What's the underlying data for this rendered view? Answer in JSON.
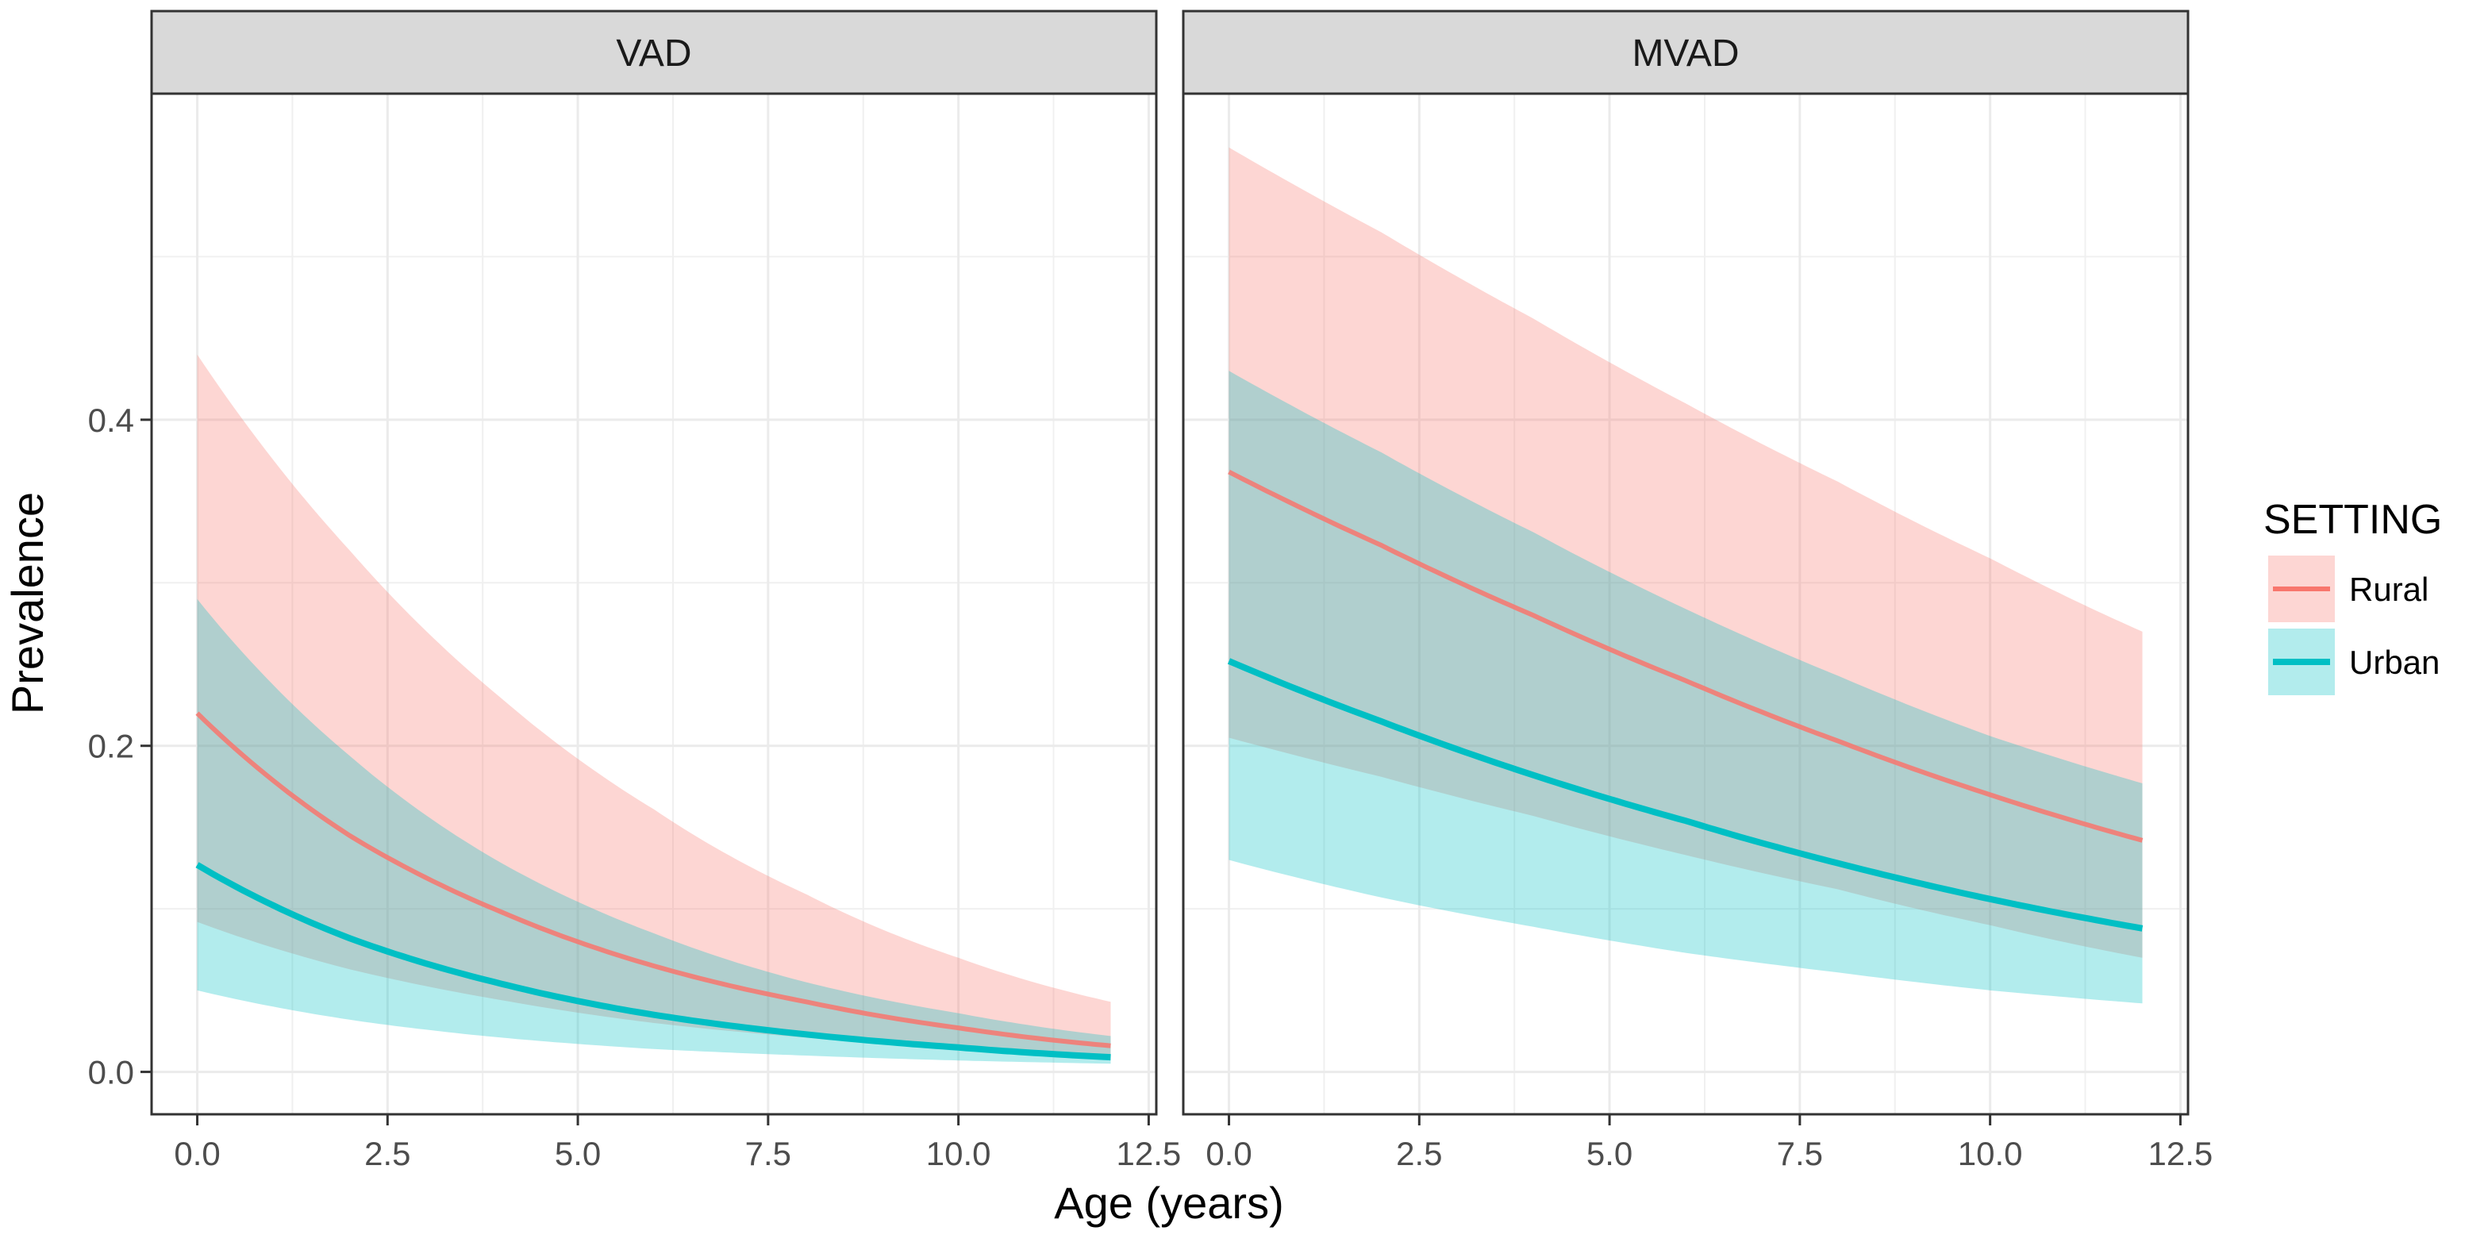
{
  "chart_data": {
    "type": "area",
    "xlabel": "Age (years)",
    "ylabel": "Prevalence",
    "xlim": [
      -0.6,
      12.6
    ],
    "ylim": [
      -0.026,
      0.6
    ],
    "x_ticks": [
      0,
      2.5,
      5,
      7.5,
      10,
      12.5
    ],
    "x_tick_labels": [
      "0.0",
      "2.5",
      "5.0",
      "7.5",
      "10.0",
      "12.5"
    ],
    "y_ticks": [
      0,
      0.2,
      0.4
    ],
    "y_tick_labels": [
      "0.0",
      "0.2",
      "0.4"
    ],
    "grid": true,
    "legend": {
      "title": "SETTING",
      "position": "right",
      "entries": [
        {
          "label": "Rural",
          "line_color": "#F8766D",
          "fill_color": "#F8766D"
        },
        {
          "label": "Urban",
          "line_color": "#00BFC4",
          "fill_color": "#00BFC4"
        }
      ]
    },
    "panels": [
      {
        "title": "VAD",
        "series": [
          {
            "name": "Rural",
            "x": [
              0,
              2,
              4,
              6,
              8,
              10,
              12
            ],
            "y": [
              0.22,
              0.145,
              0.098,
              0.065,
              0.043,
              0.027,
              0.016
            ],
            "lower": [
              0.092,
              0.063,
              0.044,
              0.03,
              0.021,
              0.014,
              0.01
            ],
            "upper": [
              0.44,
              0.32,
              0.229,
              0.161,
              0.109,
              0.07,
              0.043
            ]
          },
          {
            "name": "Urban",
            "x": [
              0,
              2,
              4,
              6,
              8,
              10,
              12
            ],
            "y": [
              0.127,
              0.082,
              0.054,
              0.035,
              0.023,
              0.015,
              0.009
            ],
            "lower": [
              0.05,
              0.032,
              0.021,
              0.014,
              0.01,
              0.007,
              0.005
            ],
            "upper": [
              0.29,
              0.194,
              0.128,
              0.085,
              0.055,
              0.036,
              0.022
            ]
          }
        ]
      },
      {
        "title": "MVAD",
        "series": [
          {
            "name": "Rural",
            "x": [
              0,
              2,
              4,
              6,
              8,
              10,
              12
            ],
            "y": [
              0.368,
              0.323,
              0.28,
              0.24,
              0.203,
              0.17,
              0.142
            ],
            "lower": [
              0.205,
              0.181,
              0.157,
              0.133,
              0.112,
              0.09,
              0.07
            ],
            "upper": [
              0.567,
              0.515,
              0.462,
              0.41,
              0.362,
              0.315,
              0.27
            ]
          },
          {
            "name": "Urban",
            "x": [
              0,
              2,
              4,
              6,
              8,
              10,
              12
            ],
            "y": [
              0.252,
              0.215,
              0.182,
              0.154,
              0.128,
              0.106,
              0.088
            ],
            "lower": [
              0.13,
              0.107,
              0.089,
              0.073,
              0.061,
              0.05,
              0.042
            ],
            "upper": [
              0.43,
              0.38,
              0.331,
              0.284,
              0.243,
              0.206,
              0.177
            ]
          }
        ]
      }
    ]
  }
}
